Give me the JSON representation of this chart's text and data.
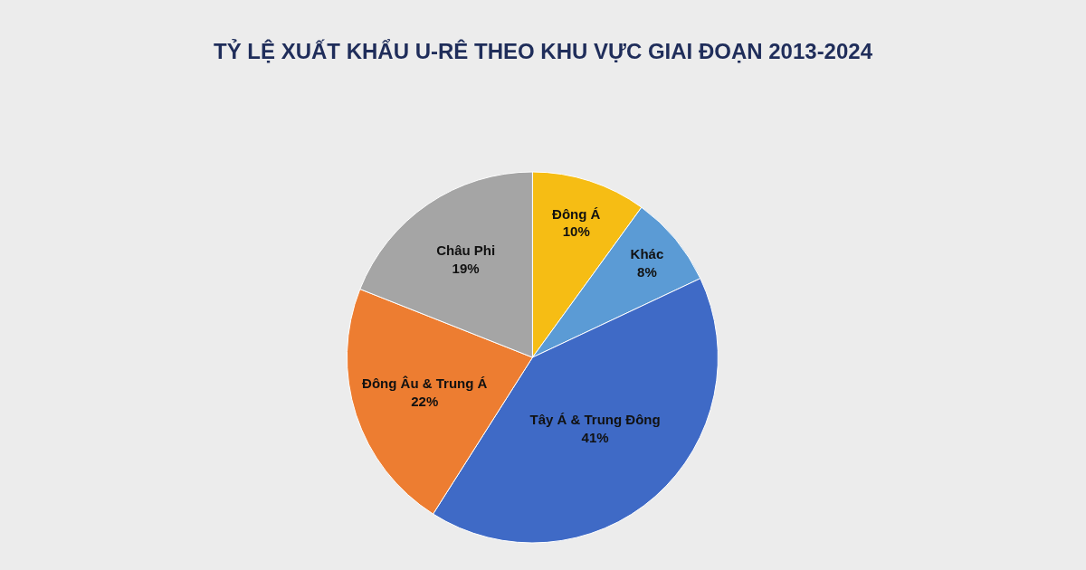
{
  "chart_data": {
    "type": "pie",
    "title": "TỶ LỆ XUẤT KHẨU U-RÊ THEO KHU VỰC GIAI ĐOẠN 2013-2024",
    "categories": [
      "Đông Á",
      "Khác",
      "Tây Á & Trung Đông",
      "Đông Âu & Trung Á",
      "Châu Phi"
    ],
    "values": [
      10,
      8,
      41,
      22,
      19
    ],
    "value_labels": [
      "10%",
      "8%",
      "41%",
      "22%",
      "19%"
    ],
    "colors": [
      "#f6bd14",
      "#5b9bd5",
      "#3f6ac6",
      "#ed7d31",
      "#a5a5a5"
    ],
    "legend": false
  }
}
